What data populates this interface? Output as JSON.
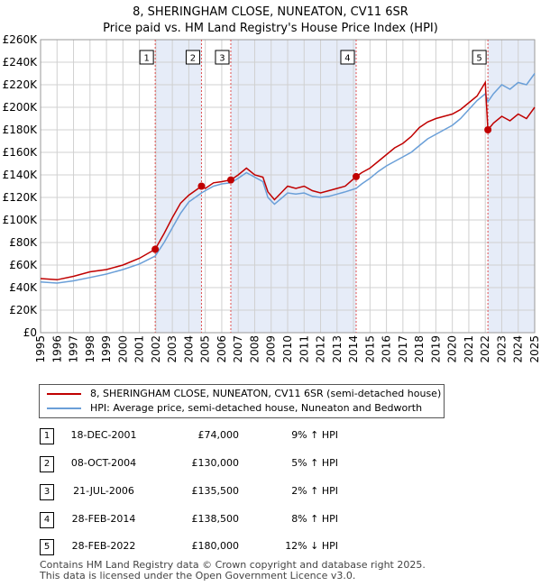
{
  "header": {
    "title": "8, SHERINGHAM CLOSE, NUNEATON, CV11 6SR",
    "subtitle": "Price paid vs. HM Land Registry's House Price Index (HPI)"
  },
  "legend": {
    "property_label": "8, SHERINGHAM CLOSE, NUNEATON, CV11 6SR (semi-detached house)",
    "hpi_label": "HPI: Average price, semi-detached house, Nuneaton and Bedworth"
  },
  "colors": {
    "property_line": "#c00000",
    "hpi_line": "#6a9fd8",
    "shade": "#e6ecf8",
    "vline": "#e05050"
  },
  "sales": [
    {
      "num": "1",
      "date": "18-DEC-2001",
      "price": "£74,000",
      "hpi": "9% ↑ HPI"
    },
    {
      "num": "2",
      "date": "08-OCT-2004",
      "price": "£130,000",
      "hpi": "5% ↑ HPI"
    },
    {
      "num": "3",
      "date": "21-JUL-2006",
      "price": "£135,500",
      "hpi": "2% ↑ HPI"
    },
    {
      "num": "4",
      "date": "28-FEB-2014",
      "price": "£138,500",
      "hpi": "8% ↑ HPI"
    },
    {
      "num": "5",
      "date": "28-FEB-2022",
      "price": "£180,000",
      "hpi": "12% ↓ HPI"
    }
  ],
  "footer": {
    "line1": "Contains HM Land Registry data © Crown copyright and database right 2025.",
    "line2": "This data is licensed under the Open Government Licence v3.0."
  },
  "chart_data": {
    "type": "line",
    "title": "8, SHERINGHAM CLOSE, NUNEATON, CV11 6SR",
    "subtitle": "Price paid vs. HM Land Registry's House Price Index (HPI)",
    "xlabel": "",
    "ylabel": "",
    "xlim": [
      1995,
      2025
    ],
    "ylim": [
      0,
      260000
    ],
    "yticks": [
      0,
      20000,
      40000,
      60000,
      80000,
      100000,
      120000,
      140000,
      160000,
      180000,
      200000,
      220000,
      240000,
      260000
    ],
    "ytick_labels": [
      "£0",
      "£20K",
      "£40K",
      "£60K",
      "£80K",
      "£100K",
      "£120K",
      "£140K",
      "£160K",
      "£180K",
      "£200K",
      "£220K",
      "£240K",
      "£260K"
    ],
    "xticks": [
      1995,
      1996,
      1997,
      1998,
      1999,
      2000,
      2001,
      2002,
      2003,
      2004,
      2005,
      2006,
      2007,
      2008,
      2009,
      2010,
      2011,
      2012,
      2013,
      2014,
      2015,
      2016,
      2017,
      2018,
      2019,
      2020,
      2021,
      2022,
      2023,
      2024,
      2025
    ],
    "grid": true,
    "shaded_spans": [
      [
        2001.96,
        2004.77
      ],
      [
        2006.55,
        2014.16
      ],
      [
        2022.16,
        2025.0
      ]
    ],
    "sale_markers": [
      {
        "label": "1",
        "x": 2001.96,
        "y": 74000
      },
      {
        "label": "2",
        "x": 2004.77,
        "y": 130000
      },
      {
        "label": "3",
        "x": 2006.55,
        "y": 135500
      },
      {
        "label": "4",
        "x": 2014.16,
        "y": 138500
      },
      {
        "label": "5",
        "x": 2022.16,
        "y": 180000
      }
    ],
    "series": [
      {
        "name": "8, SHERINGHAM CLOSE, NUNEATON, CV11 6SR (semi-detached house)",
        "x": [
          1995,
          1996,
          1997,
          1998,
          1999,
          2000,
          2001,
          2001.96,
          2002.5,
          2003,
          2003.5,
          2004,
          2004.77,
          2005,
          2005.5,
          2006,
          2006.55,
          2007,
          2007.5,
          2008,
          2008.5,
          2008.8,
          2009.2,
          2009.6,
          2010,
          2010.5,
          2011,
          2011.5,
          2012,
          2012.5,
          2013,
          2013.5,
          2014.16,
          2014.5,
          2015,
          2015.5,
          2016,
          2016.5,
          2017,
          2017.5,
          2018,
          2018.5,
          2019,
          2019.5,
          2020,
          2020.5,
          2021,
          2021.5,
          2022.0,
          2022.16,
          2022.5,
          2023,
          2023.5,
          2024,
          2024.5,
          2025
        ],
        "y": [
          48000,
          47000,
          50000,
          54000,
          56000,
          60000,
          66000,
          74000,
          88000,
          102000,
          115000,
          122000,
          130000,
          128000,
          133000,
          134000,
          135500,
          140000,
          146000,
          140000,
          138000,
          125000,
          118000,
          124000,
          130000,
          128000,
          130000,
          126000,
          124000,
          126000,
          128000,
          130000,
          138500,
          142000,
          146000,
          152000,
          158000,
          164000,
          168000,
          174000,
          182000,
          187000,
          190000,
          192000,
          194000,
          198000,
          204000,
          210000,
          222000,
          180000,
          186000,
          192000,
          188000,
          194000,
          190000,
          200000
        ]
      },
      {
        "name": "HPI: Average price, semi-detached house, Nuneaton and Bedworth",
        "x": [
          1995,
          1996,
          1997,
          1998,
          1999,
          2000,
          2001,
          2001.96,
          2002.5,
          2003,
          2003.5,
          2004,
          2004.77,
          2005,
          2005.5,
          2006,
          2006.55,
          2007,
          2007.5,
          2008,
          2008.5,
          2008.8,
          2009.2,
          2009.6,
          2010,
          2010.5,
          2011,
          2011.5,
          2012,
          2012.5,
          2013,
          2013.5,
          2014.16,
          2014.5,
          2015,
          2015.5,
          2016,
          2016.5,
          2017,
          2017.5,
          2018,
          2018.5,
          2019,
          2019.5,
          2020,
          2020.5,
          2021,
          2021.5,
          2022.0,
          2022.16,
          2022.5,
          2023,
          2023.5,
          2024,
          2024.5,
          2025
        ],
        "y": [
          45000,
          44000,
          46000,
          49000,
          52000,
          56000,
          61000,
          68000,
          80000,
          93000,
          106000,
          116000,
          124000,
          126000,
          130000,
          132000,
          133000,
          137000,
          142000,
          138000,
          134000,
          120000,
          114000,
          119000,
          124000,
          123000,
          124000,
          121000,
          120000,
          121000,
          123000,
          125000,
          128000,
          132000,
          137000,
          143000,
          148000,
          152000,
          156000,
          160000,
          166000,
          172000,
          176000,
          180000,
          184000,
          190000,
          198000,
          206000,
          212000,
          205000,
          212000,
          220000,
          216000,
          222000,
          220000,
          230000
        ]
      }
    ]
  }
}
